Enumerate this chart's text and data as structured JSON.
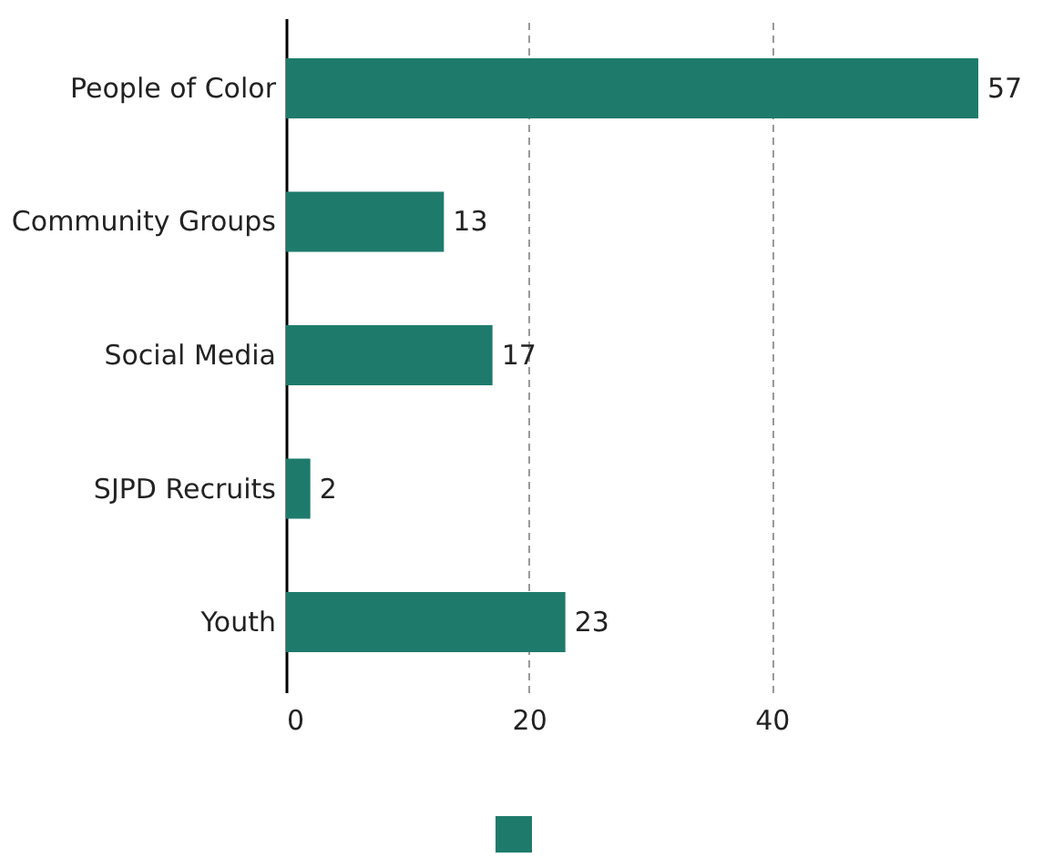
{
  "chart_data": {
    "type": "bar",
    "orientation": "horizontal",
    "categories": [
      "People of Color",
      "Community Groups",
      "Social Media",
      "SJPD Recruits",
      "Youth"
    ],
    "series": [
      {
        "color": "#1e7b6c",
        "values": [
          57,
          13,
          17,
          2,
          23
        ]
      }
    ],
    "xlim": [
      0,
      57
    ],
    "xticks": [
      0,
      20,
      40
    ],
    "grid": "x",
    "data_labels": true
  }
}
